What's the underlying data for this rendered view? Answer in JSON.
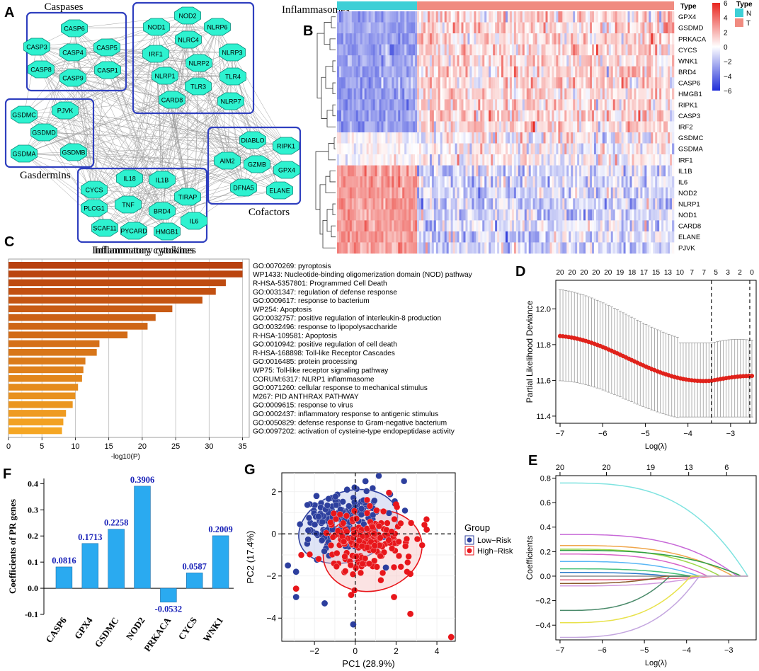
{
  "panel_labels": {
    "a": "A",
    "b": "B",
    "c": "C",
    "d": "D",
    "e": "E",
    "f": "F",
    "g": "G"
  },
  "chart_data": [
    {
      "panel": "A",
      "type": "network",
      "groups": [
        {
          "label": "Caspases",
          "nodes": [
            "CASP6",
            "CASP3",
            "CASP4",
            "CASP5",
            "CASP8",
            "CASP1",
            "CASP9"
          ]
        },
        {
          "label": "Inflammasomes",
          "nodes": [
            "NOD2",
            "NOD1",
            "NLRP6",
            "NLRC4",
            "IRF1",
            "NLRP3",
            "NLRP2",
            "NLRP1",
            "TLR4",
            "TLR3",
            "CARD8",
            "NLRP7"
          ]
        },
        {
          "label": "Gasdermins",
          "nodes": [
            "GSDMC",
            "PJVK",
            "GSDMD",
            "GSDMA",
            "GSDMB"
          ]
        },
        {
          "label": "Cofactors",
          "nodes": [
            "DIABLO",
            "RIPK1",
            "AIM2",
            "GZMB",
            "GPX4",
            "DFNA5",
            "ELANE"
          ]
        },
        {
          "label": "Inflammatory cytokines",
          "nodes": [
            "IL18",
            "IL1B",
            "CYCS",
            "TNF",
            "TIRAP",
            "PLCG1",
            "BRD4",
            "IL6",
            "SCAF11",
            "PYCARD",
            "HMGB1"
          ]
        }
      ]
    },
    {
      "panel": "B",
      "type": "heatmap",
      "genes": [
        "GPX4",
        "GSDMD",
        "PRKACA",
        "CYCS",
        "WNK1",
        "BRD4",
        "CASP6",
        "HMGB1",
        "RIPK1",
        "CASP3",
        "IRF2",
        "GSDMC",
        "GSDMA",
        "IRF1",
        "IL1B",
        "IL6",
        "NOD2",
        "NLRP1",
        "NOD1",
        "CARD8",
        "ELANE",
        "PJVK"
      ],
      "groups": [
        "N",
        "T"
      ],
      "n_fraction": 0.24,
      "scale_ticks": [
        6,
        4,
        2,
        0,
        -2,
        -4,
        -6
      ],
      "legend_title": "Type",
      "scale_title": "Type",
      "colors": {
        "N": "#3ecfd6",
        "T": "#f08b80",
        "high": "#e8261f",
        "low": "#1f2dd8"
      },
      "row_bias_N": [
        -1,
        -1,
        -1,
        -1,
        -1,
        -1,
        -1,
        -1,
        -1,
        -1,
        -1,
        0,
        0,
        0,
        1,
        1,
        1,
        1,
        1,
        1,
        1,
        1
      ]
    },
    {
      "panel": "C",
      "type": "bar",
      "orientation": "horizontal",
      "title": "Inflammatory cytokines",
      "categories": [
        "GO:0070269: pyroptosis",
        "WP1433: Nucleotide-binding oligomerization domain (NOD) pathway",
        "R-HSA-5357801: Programmed Cell Death",
        "GO:0031347: regulation of defense response",
        "GO:0009617: response to bacterium",
        "WP254: Apoptosis",
        "GO:0032757: positive regulation of interleukin-8 production",
        "GO:0032496: response to lipopolysaccharide",
        "R-HSA-109581: Apoptosis",
        "GO:0010942: positive regulation of cell death",
        "R-HSA-168898: Toll-like Receptor Cascades",
        "GO:0016485: protein processing",
        "WP75: Toll-like receptor signaling pathway",
        "CORUM:6317: NLRP1 inflammasome",
        "GO:0071260: cellular response to mechanical stimulus",
        "M267: PID ANTHRAX PATHWAY",
        "GO:0009615: response to virus",
        "GO:0002437: inflammatory response to antigenic stimulus",
        "GO:0050829: defense response to Gram-negative bacterium",
        "GO:0097202: activation of cysteine-type endopeptidase activity"
      ],
      "values": [
        35,
        35,
        32.5,
        31,
        29,
        24.5,
        22,
        20.8,
        17.8,
        13.6,
        13.2,
        11.5,
        11.2,
        11,
        10.4,
        10,
        9.6,
        8.6,
        8.2,
        8
      ],
      "xlabel": "-log10(P)",
      "xticks": [
        0,
        5,
        10,
        15,
        20,
        25,
        30,
        35
      ],
      "xlim": [
        0,
        36
      ],
      "colors": {
        "dark": "#b8400e",
        "light": "#f5a623"
      }
    },
    {
      "panel": "D",
      "type": "errorbar",
      "xlabel": "Log(λ)",
      "ylabel": "Partial Likelihood Deviance",
      "xticks": [
        -7,
        -6,
        -5,
        -4,
        -3
      ],
      "yticks": [
        11.4,
        11.6,
        11.8,
        12.0
      ],
      "xlim": [
        -7.1,
        -2.4
      ],
      "ylim": [
        11.36,
        12.16
      ],
      "top_ticks": [
        "20",
        "20",
        "20",
        "20",
        "20",
        "19",
        "18",
        "17",
        "15",
        "13",
        "10",
        "7",
        "7",
        "5",
        "3",
        "2",
        "0"
      ],
      "vlines": [
        -3.45,
        -2.55
      ],
      "x_start": -7.0,
      "x_end": -2.5,
      "n_points": 68,
      "y_start": 11.848,
      "y_min": 11.598,
      "min_at": -3.45,
      "y_end": 11.625,
      "color": "#e0221b"
    },
    {
      "panel": "E",
      "type": "line",
      "xlabel": "Log(λ)",
      "ylabel": "Coefficients",
      "xticks": [
        -7,
        -6,
        -5,
        -4,
        -3
      ],
      "yticks": [
        -0.4,
        -0.2,
        0.0,
        0.2,
        0.4,
        0.6,
        0.8
      ],
      "xlim": [
        -7.1,
        -2.35
      ],
      "ylim": [
        -0.52,
        0.82
      ],
      "top_ticks": [
        "20",
        "20",
        "19",
        "13",
        "6"
      ],
      "series": [
        {
          "start": 0.76,
          "end": -2.55,
          "color": "#7fe3e0"
        },
        {
          "start": 0.34,
          "end": -2.8,
          "color": "#c86ad8"
        },
        {
          "start": 0.25,
          "end": -2.9,
          "color": "#f0a64b"
        },
        {
          "start": 0.22,
          "end": -3.2,
          "color": "#9fd84a"
        },
        {
          "start": 0.21,
          "end": -2.7,
          "color": "#2e9e44"
        },
        {
          "start": 0.18,
          "end": -3.5,
          "color": "#d862c8"
        },
        {
          "start": 0.12,
          "end": -3.7,
          "color": "#5bb7f5"
        },
        {
          "start": 0.06,
          "end": -3.9,
          "color": "#46c27a"
        },
        {
          "start": 0.03,
          "end": -4.4,
          "color": "#2a7ac9"
        },
        {
          "start": 0.0,
          "end": -4.8,
          "color": "#8a8a8a"
        },
        {
          "start": -0.03,
          "end": -3.3,
          "color": "#e25b7a"
        },
        {
          "start": -0.06,
          "end": -4.5,
          "color": "#8b5a2b"
        },
        {
          "start": -0.08,
          "end": -3.6,
          "color": "#d39ce0"
        },
        {
          "start": -0.28,
          "end": -4.4,
          "color": "#4a8a6a"
        },
        {
          "start": -0.38,
          "end": -3.9,
          "color": "#e8e24a"
        },
        {
          "start": -0.5,
          "end": -3.7,
          "color": "#c4a6df"
        }
      ]
    },
    {
      "panel": "F",
      "type": "bar",
      "ylabel": "Coefficients of PR genes",
      "categories": [
        "CASP6",
        "GPX4",
        "GSDMC",
        "NOD2",
        "PRKACA",
        "CYCS",
        "WNK1"
      ],
      "values": [
        0.0816,
        0.1713,
        0.2258,
        0.3906,
        -0.0532,
        0.0587,
        0.2009
      ],
      "labels": [
        "0.0816",
        "0.1713",
        "0.2258",
        "0.3906",
        "-0.0532",
        "0.0587",
        "0.2009"
      ],
      "yticks": [
        -0.1,
        0.0,
        0.1,
        0.2,
        0.3,
        0.4
      ],
      "yticklabels": [
        "-0.1",
        "0.0",
        "0.1",
        "0.2",
        "0.3",
        "0.4"
      ],
      "ylim": [
        -0.1,
        0.42
      ],
      "bar_color": "#2aaaf0",
      "label_color": "#1a22b8"
    },
    {
      "panel": "G",
      "type": "scatter",
      "xlabel": "PC1 (28.9%)",
      "ylabel": "PC2 (17.4%)",
      "xticks": [
        -2,
        0,
        2,
        4
      ],
      "yticks": [
        -4,
        -2,
        0,
        2
      ],
      "xlim": [
        -3.6,
        4.9
      ],
      "ylim": [
        -5.1,
        2.9
      ],
      "legend_title": "Group",
      "legend": [
        "Low−Risk",
        "High−Risk"
      ],
      "colors": {
        "low": "#2d3f9e",
        "high": "#e8161b"
      },
      "series": [
        {
          "name": "Low−Risk",
          "center": [
            -0.5,
            0.6
          ],
          "spread": [
            1.0,
            0.75
          ],
          "n": 190,
          "extra": [
            [
              -1.5,
              -3.3
            ],
            [
              -0.1,
              -4.3
            ],
            [
              -2.9,
              -3.0
            ],
            [
              -3.3,
              -1.5
            ],
            [
              -2.9,
              -1.8
            ],
            [
              -0.4,
              2.1
            ],
            [
              0.5,
              2.5
            ],
            [
              -1.9,
              1.8
            ],
            [
              1.5,
              -1.6
            ]
          ]
        },
        {
          "name": "High−Risk",
          "center": [
            0.6,
            -0.4
          ],
          "spread": [
            1.0,
            0.75
          ],
          "n": 200,
          "extra": [
            [
              4.7,
              -4.9
            ],
            [
              2.7,
              -3.8
            ],
            [
              1.9,
              -3.0
            ],
            [
              -2.9,
              -2.6
            ],
            [
              2.7,
              -1.9
            ],
            [
              -0.2,
              -2.9
            ],
            [
              3.5,
              0.2
            ],
            [
              2.0,
              1.4
            ]
          ]
        }
      ],
      "ellipses": [
        {
          "name": "Low−Risk",
          "cx": -0.35,
          "cy": 0.35,
          "rx": 2.5,
          "ry": 1.65,
          "angle": -20
        },
        {
          "name": "High−Risk",
          "cx": 0.85,
          "cy": -0.8,
          "rx": 2.45,
          "ry": 1.9,
          "angle": -15
        }
      ]
    }
  ]
}
